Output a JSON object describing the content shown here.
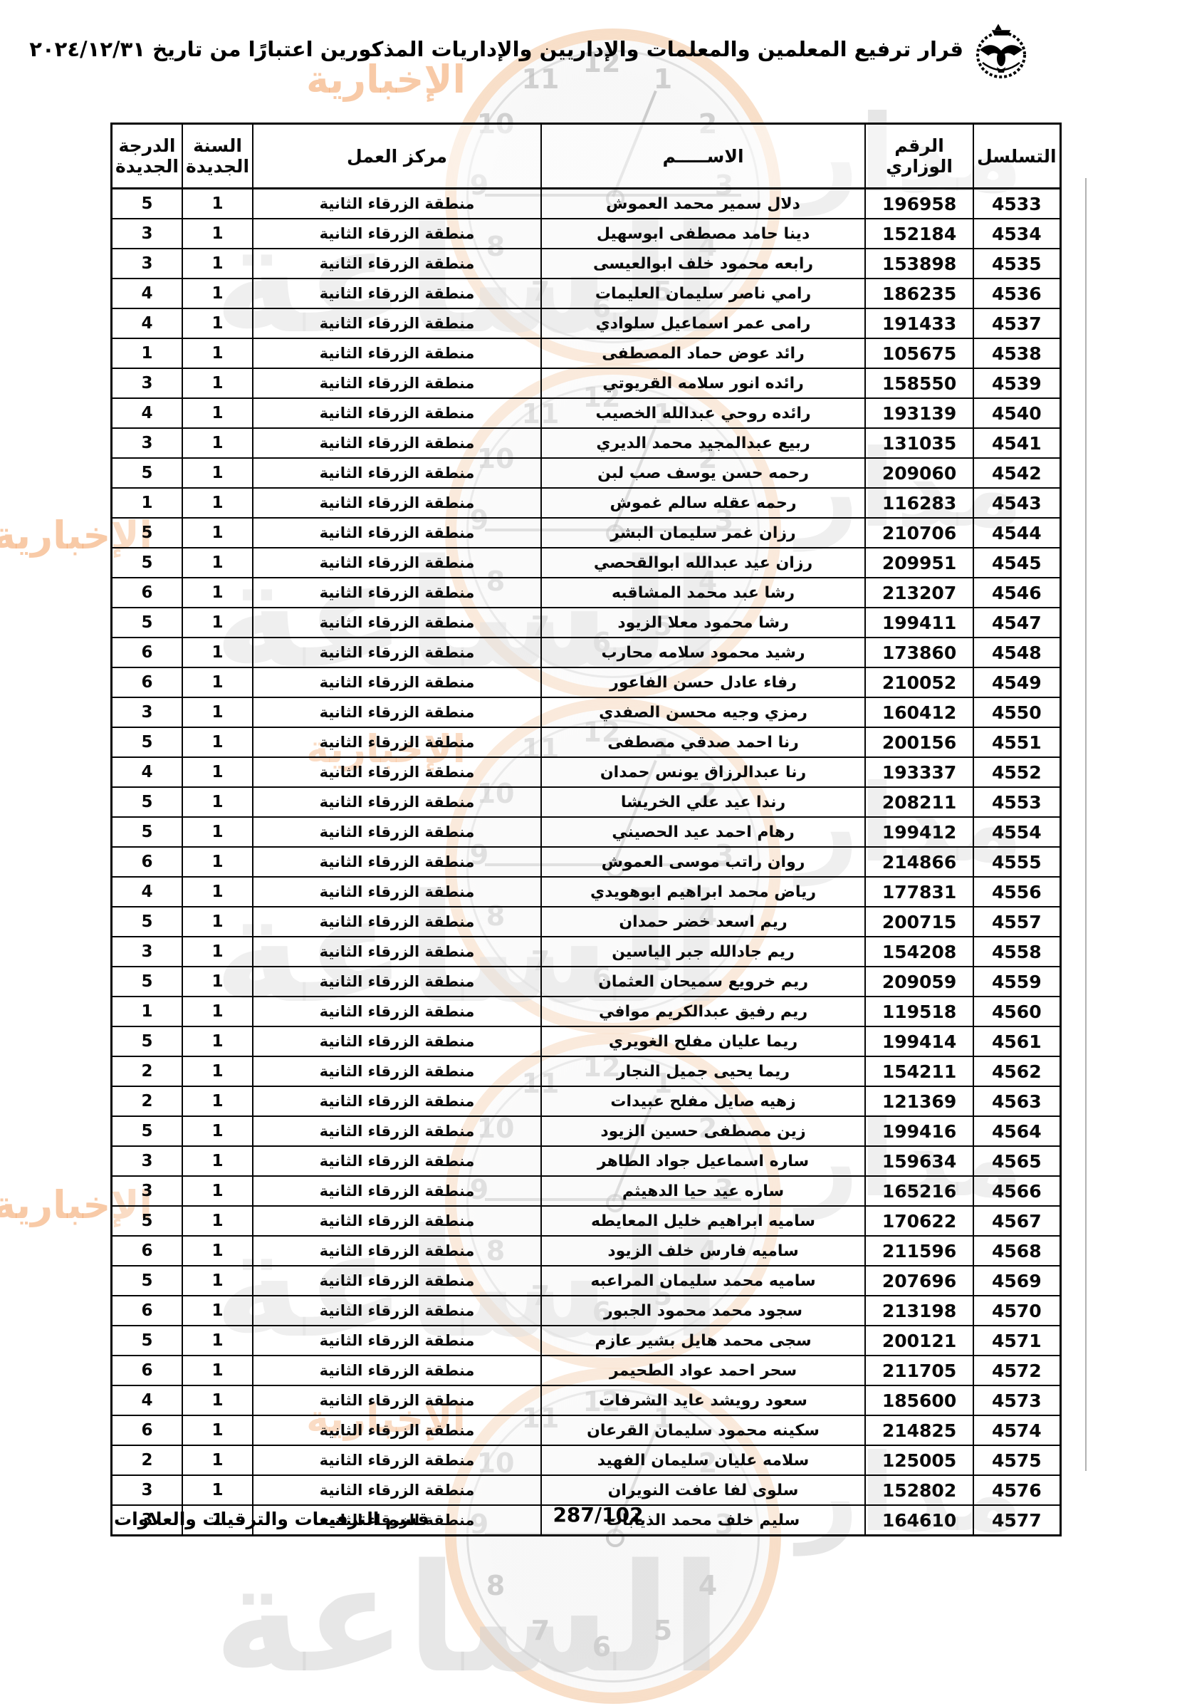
{
  "header": {
    "title": "قرار ترفيع المعلمين والمعلمات والإداريين والإداريات المذكورين اعتبارًا من تاريخ ٢٠٢٤/١٢/٣١",
    "logo": "jordan-coat-of-arms-emblem"
  },
  "table": {
    "headers": {
      "serial": "التسلسل",
      "ministry_no": "الرقم الوزاري",
      "name": "الاســـــم",
      "work_center": "مركز العمل",
      "new_year": "السنة الجديدة",
      "new_grade": "الدرجة الجديدة"
    },
    "rows": [
      [
        "4533",
        "196958",
        "دلال سمير محمد العموش",
        "منطقة الزرقاء الثانية",
        "1",
        "5"
      ],
      [
        "4534",
        "152184",
        "دينا حامد مصطفى ابوسهيل",
        "منطقة الزرقاء الثانية",
        "1",
        "3"
      ],
      [
        "4535",
        "153898",
        "رابعه محمود خلف ابوالعيسى",
        "منطقة الزرقاء الثانية",
        "1",
        "3"
      ],
      [
        "4536",
        "186235",
        "رامي ناصر سليمان العليمات",
        "منطقة الزرقاء الثانية",
        "1",
        "4"
      ],
      [
        "4537",
        "191433",
        "رامى عمر اسماعيل سلوادي",
        "منطقة الزرقاء الثانية",
        "1",
        "4"
      ],
      [
        "4538",
        "105675",
        "رائد عوض حماد المصطفى",
        "منطقة الزرقاء الثانية",
        "1",
        "1"
      ],
      [
        "4539",
        "158550",
        "رائده انور سلامه القريوتي",
        "منطقة الزرقاء الثانية",
        "1",
        "3"
      ],
      [
        "4540",
        "193139",
        "رائده روحي عبدالله الخصيب",
        "منطقة الزرقاء الثانية",
        "1",
        "4"
      ],
      [
        "4541",
        "131035",
        "ربيع عبدالمجيد محمد الديري",
        "منطقة الزرقاء الثانية",
        "1",
        "3"
      ],
      [
        "4542",
        "209060",
        "رحمه حسن يوسف صب لبن",
        "منطقة الزرقاء الثانية",
        "1",
        "5"
      ],
      [
        "4543",
        "116283",
        "رحمه عقله سالم غموش",
        "منطقة الزرقاء الثانية",
        "1",
        "1"
      ],
      [
        "4544",
        "210706",
        "رزان غمر سليمان البشر",
        "منطقة الزرقاء الثانية",
        "1",
        "5"
      ],
      [
        "4545",
        "209951",
        "رزان عيد عبدالله ابوالقحصي",
        "منطقة الزرقاء الثانية",
        "1",
        "5"
      ],
      [
        "4546",
        "213207",
        "رشا عبد محمد المشاقبه",
        "منطقة الزرقاء الثانية",
        "1",
        "6"
      ],
      [
        "4547",
        "199411",
        "رشا محمود معلا الزيود",
        "منطقة الزرقاء الثانية",
        "1",
        "5"
      ],
      [
        "4548",
        "173860",
        "رشيد محمود سلامه محارب",
        "منطقة الزرقاء الثانية",
        "1",
        "6"
      ],
      [
        "4549",
        "210052",
        "رفاء عادل حسن الفاعور",
        "منطقة الزرقاء الثانية",
        "1",
        "6"
      ],
      [
        "4550",
        "160412",
        "رمزي وجيه محسن الصفدي",
        "منطقة الزرقاء الثانية",
        "1",
        "3"
      ],
      [
        "4551",
        "200156",
        "رنا احمد صدقي مصطفى",
        "منطقة الزرقاء الثانية",
        "1",
        "5"
      ],
      [
        "4552",
        "193337",
        "رنا عبدالرزاق يونس حمدان",
        "منطقة الزرقاء الثانية",
        "1",
        "4"
      ],
      [
        "4553",
        "208211",
        "رندا عيد علي الخريشا",
        "منطقة الزرقاء الثانية",
        "1",
        "5"
      ],
      [
        "4554",
        "199412",
        "رهام احمد عيد الحصيني",
        "منطقة الزرقاء الثانية",
        "1",
        "5"
      ],
      [
        "4555",
        "214866",
        "روان راتب موسى العموش",
        "منطقة الزرقاء الثانية",
        "1",
        "6"
      ],
      [
        "4556",
        "177831",
        "رياض محمد ابراهيم ابوهويدي",
        "منطقة الزرقاء الثانية",
        "1",
        "4"
      ],
      [
        "4557",
        "200715",
        "ريم اسعد خضر حمدان",
        "منطقة الزرقاء الثانية",
        "1",
        "5"
      ],
      [
        "4558",
        "154208",
        "ريم جادالله جبر الياسين",
        "منطقة الزرقاء الثانية",
        "1",
        "3"
      ],
      [
        "4559",
        "209059",
        "ريم خرويع سميحان العثمان",
        "منطقة الزرقاء الثانية",
        "1",
        "5"
      ],
      [
        "4560",
        "119518",
        "ريم رفيق عبدالكريم موافي",
        "منطقة الزرقاء الثانية",
        "1",
        "1"
      ],
      [
        "4561",
        "199414",
        "ريما عليان مفلح الغويري",
        "منطقة الزرقاء الثانية",
        "1",
        "5"
      ],
      [
        "4562",
        "154211",
        "ريما يحيى جميل النجار",
        "منطقة الزرقاء الثانية",
        "1",
        "2"
      ],
      [
        "4563",
        "121369",
        "زهيه صايل مفلح عبيدات",
        "منطقة الزرقاء الثانية",
        "1",
        "2"
      ],
      [
        "4564",
        "199416",
        "زين مصطفى حسين الزيود",
        "منطقة الزرقاء الثانية",
        "1",
        "5"
      ],
      [
        "4565",
        "159634",
        "ساره اسماعيل جواد الطاهر",
        "منطقة الزرقاء الثانية",
        "1",
        "3"
      ],
      [
        "4566",
        "165216",
        "ساره عيد حيا الدهيثم",
        "منطقة الزرقاء الثانية",
        "1",
        "3"
      ],
      [
        "4567",
        "170622",
        "ساميه ابراهيم خليل المعايطه",
        "منطقة الزرقاء الثانية",
        "1",
        "5"
      ],
      [
        "4568",
        "211596",
        "ساميه فارس خلف الزيود",
        "منطقة الزرقاء الثانية",
        "1",
        "6"
      ],
      [
        "4569",
        "207696",
        "ساميه محمد سليمان المراعبه",
        "منطقة الزرقاء الثانية",
        "1",
        "5"
      ],
      [
        "4570",
        "213198",
        "سجود محمد محمود الجبور",
        "منطقة الزرقاء الثانية",
        "1",
        "6"
      ],
      [
        "4571",
        "200121",
        "سجى محمد هايل بشير عازم",
        "منطقة الزرقاء الثانية",
        "1",
        "5"
      ],
      [
        "4572",
        "211705",
        "سحر احمد عواد الطحيمر",
        "منطقة الزرقاء الثانية",
        "1",
        "6"
      ],
      [
        "4573",
        "185600",
        "سعود رويشد عايد الشرفات",
        "منطقة الزرقاء الثانية",
        "1",
        "4"
      ],
      [
        "4574",
        "214825",
        "سكينه محمود سليمان القرعان",
        "منطقة الزرقاء الثانية",
        "1",
        "6"
      ],
      [
        "4575",
        "125005",
        "سلامه عليان سليمان الفهيد",
        "منطقة الزرقاء الثانية",
        "1",
        "2"
      ],
      [
        "4576",
        "152802",
        "سلوى لفا عافت النويران",
        "منطقة الزرقاء الثانية",
        "1",
        "3"
      ],
      [
        "4577",
        "164610",
        "سليم خلف محمد الذيابات",
        "منطقة الزرقاء الثانية",
        "1",
        "3"
      ]
    ]
  },
  "footer": {
    "page_number": "287/102",
    "department": "قسم الترفيعات والترقيات والعلاوات"
  },
  "watermark": {
    "word_madar": "مدار",
    "word_alsaa": "الساعة",
    "word_akhbaria": "الإخبارية",
    "clock_numbers": [
      "12",
      "1",
      "2",
      "3",
      "4",
      "5",
      "6",
      "7",
      "8",
      "9",
      "10",
      "11"
    ],
    "accent_color": "#f4b278",
    "gray_color": "#d2d2d2"
  }
}
